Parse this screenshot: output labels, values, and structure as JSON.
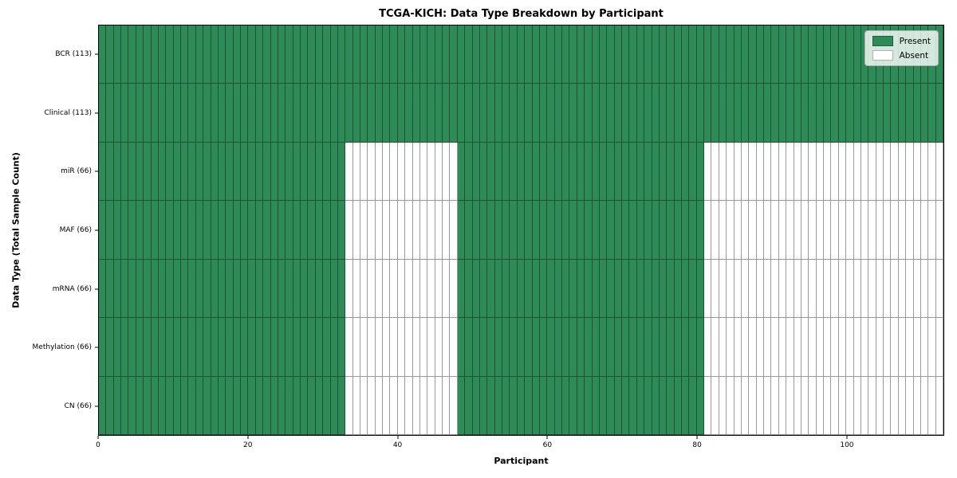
{
  "chart_data": {
    "type": "heatmap",
    "title": "TCGA-KICH: Data Type Breakdown by Participant",
    "xlabel": "Participant",
    "ylabel": "Data Type (Total Sample Count)",
    "x_range": [
      0,
      113
    ],
    "x_ticks": [
      0,
      20,
      40,
      60,
      80,
      100
    ],
    "n_participants": 113,
    "categories": [
      "BCR (113)",
      "Clinical (113)",
      "miR (66)",
      "MAF (66)",
      "mRNA (66)",
      "Methylation (66)",
      "CN (66)"
    ],
    "rows": [
      {
        "label": "BCR (113)",
        "present_count": 113,
        "present_ranges": [
          [
            0,
            113
          ]
        ]
      },
      {
        "label": "Clinical (113)",
        "present_count": 113,
        "present_ranges": [
          [
            0,
            113
          ]
        ]
      },
      {
        "label": "miR (66)",
        "present_count": 66,
        "present_ranges": [
          [
            0,
            33
          ],
          [
            48,
            81
          ]
        ]
      },
      {
        "label": "MAF (66)",
        "present_count": 66,
        "present_ranges": [
          [
            0,
            33
          ],
          [
            48,
            81
          ]
        ]
      },
      {
        "label": "mRNA (66)",
        "present_count": 66,
        "present_ranges": [
          [
            0,
            33
          ],
          [
            48,
            81
          ]
        ]
      },
      {
        "label": "Methylation (66)",
        "present_count": 66,
        "present_ranges": [
          [
            0,
            33
          ],
          [
            48,
            81
          ]
        ]
      },
      {
        "label": "CN (66)",
        "present_count": 66,
        "present_ranges": [
          [
            0,
            33
          ],
          [
            48,
            81
          ]
        ]
      }
    ],
    "legend": [
      {
        "label": "Present",
        "color": "#2e8b57"
      },
      {
        "label": "Absent",
        "color": "#ffffff"
      }
    ],
    "legend_position": "upper-right",
    "colors": {
      "present": "#2e8b57",
      "absent": "#ffffff",
      "cell_edge": "rgba(0,0,0,0.40)",
      "frame": "#000000",
      "background": "#ffffff"
    }
  }
}
